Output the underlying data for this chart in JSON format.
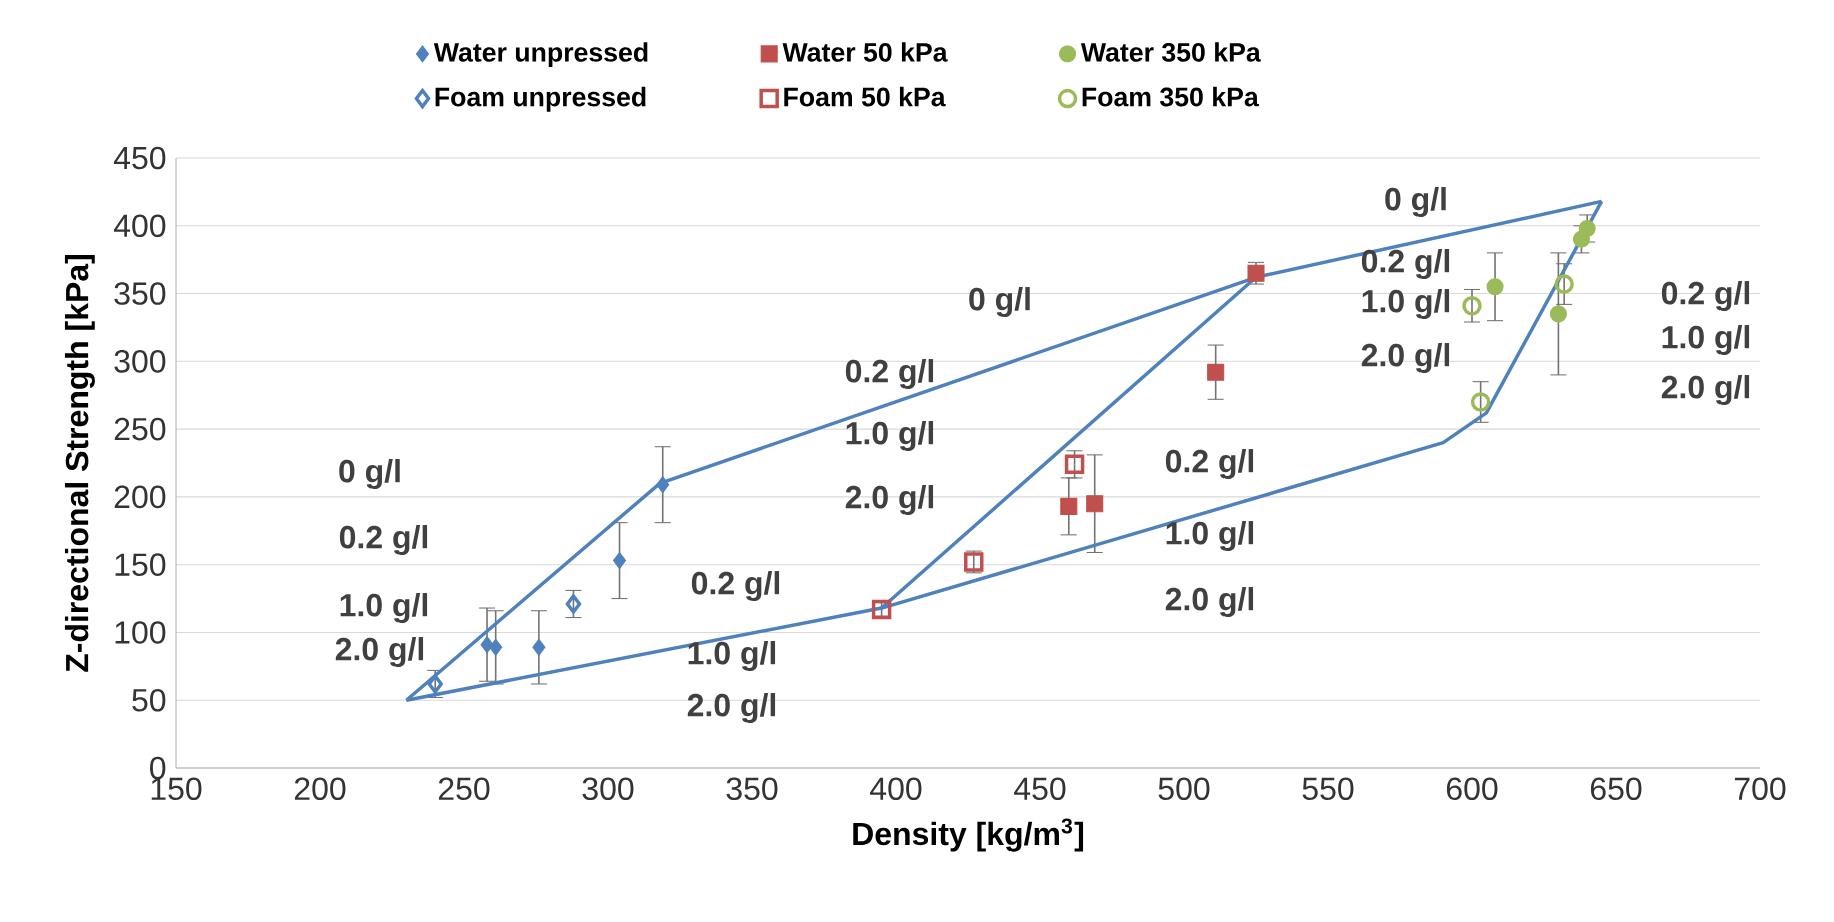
{
  "chart_data": {
    "type": "scatter",
    "xlabel": "Density [kg/m$^{3}$]",
    "ylabel": "Z-directional Strength [kPa]",
    "xlim": [
      150,
      700
    ],
    "xticks": [
      150,
      200,
      250,
      300,
      350,
      400,
      450,
      500,
      550,
      600,
      650,
      700
    ],
    "ylim": [
      0,
      450
    ],
    "yticks": [
      0,
      50,
      100,
      150,
      200,
      250,
      300,
      350,
      400,
      450
    ],
    "grid": "y",
    "legend": "top",
    "series": [
      {
        "name": "Water unpressed",
        "color": "#4f81bd",
        "marker": "diamond",
        "x": [
          258,
          261,
          276,
          304,
          319
        ],
        "values": [
          91,
          89,
          89,
          153,
          209
        ],
        "errors": [
          27,
          27,
          27,
          28,
          28
        ]
      },
      {
        "name": "Water 50 kPa",
        "color": "#c0504d",
        "marker": "square",
        "x": [
          460,
          469,
          511,
          525
        ],
        "values": [
          193,
          195,
          292,
          365
        ],
        "errors": [
          21,
          36,
          20,
          8
        ]
      },
      {
        "name": "Water 350 kPa",
        "color": "#9bbb59",
        "marker": "circle",
        "x": [
          608,
          630,
          638,
          640
        ],
        "values": [
          355,
          335,
          390,
          398
        ],
        "errors": [
          25,
          45,
          10,
          10
        ]
      },
      {
        "name": "Foam unpressed",
        "color": "#4f81bd",
        "marker": "diamond",
        "x": [
          240,
          288
        ],
        "values": [
          62,
          121
        ],
        "errors": [
          10,
          10
        ]
      },
      {
        "name": "Foam 50 kPa",
        "color": "#c0504d",
        "marker": "square",
        "x": [
          395,
          427,
          462
        ],
        "values": [
          117,
          152,
          224
        ],
        "errors": [
          5,
          8,
          10
        ]
      },
      {
        "name": "Foam 350 kPa",
        "color": "#9bbb59",
        "marker": "circle",
        "x": [
          600,
          603,
          632
        ],
        "values": [
          341,
          270,
          357
        ],
        "errors": [
          12,
          15,
          15
        ]
      },
      {
        "type": "line",
        "color": "#4f81bd",
        "marker": "none",
        "x": [
          230,
          318,
          525,
          645
        ],
        "values": [
          50,
          210,
          362,
          418
        ]
      },
      {
        "type": "line",
        "color": "#4f81bd",
        "marker": "none",
        "x": [
          230,
          395,
          590,
          605,
          645
        ],
        "values": [
          50,
          118,
          240,
          262,
          418
        ]
      },
      {
        "type": "line",
        "color": "#4f81bd",
        "marker": "none",
        "x": [
          395,
          525
        ],
        "values": [
          118,
          362
        ]
      }
    ],
    "annotations": [
      "0 g/l",
      "0.2 g/l",
      "1.0 g/l",
      "2.0 g/l",
      "0.2 g/l",
      "1.0 g/l",
      "2.0 g/l",
      "0 g/l",
      "0.2 g/l",
      "1.0 g/l",
      "2.0 g/l",
      "0.2 g/l",
      "1.0 g/l",
      "2.0 g/l",
      "0 g/l",
      "0.2 g/l",
      "1.0 g/l",
      "2.0 g/l",
      "0.2 g/l",
      "1.0 g/l",
      "2.0 g/l"
    ]
  }
}
